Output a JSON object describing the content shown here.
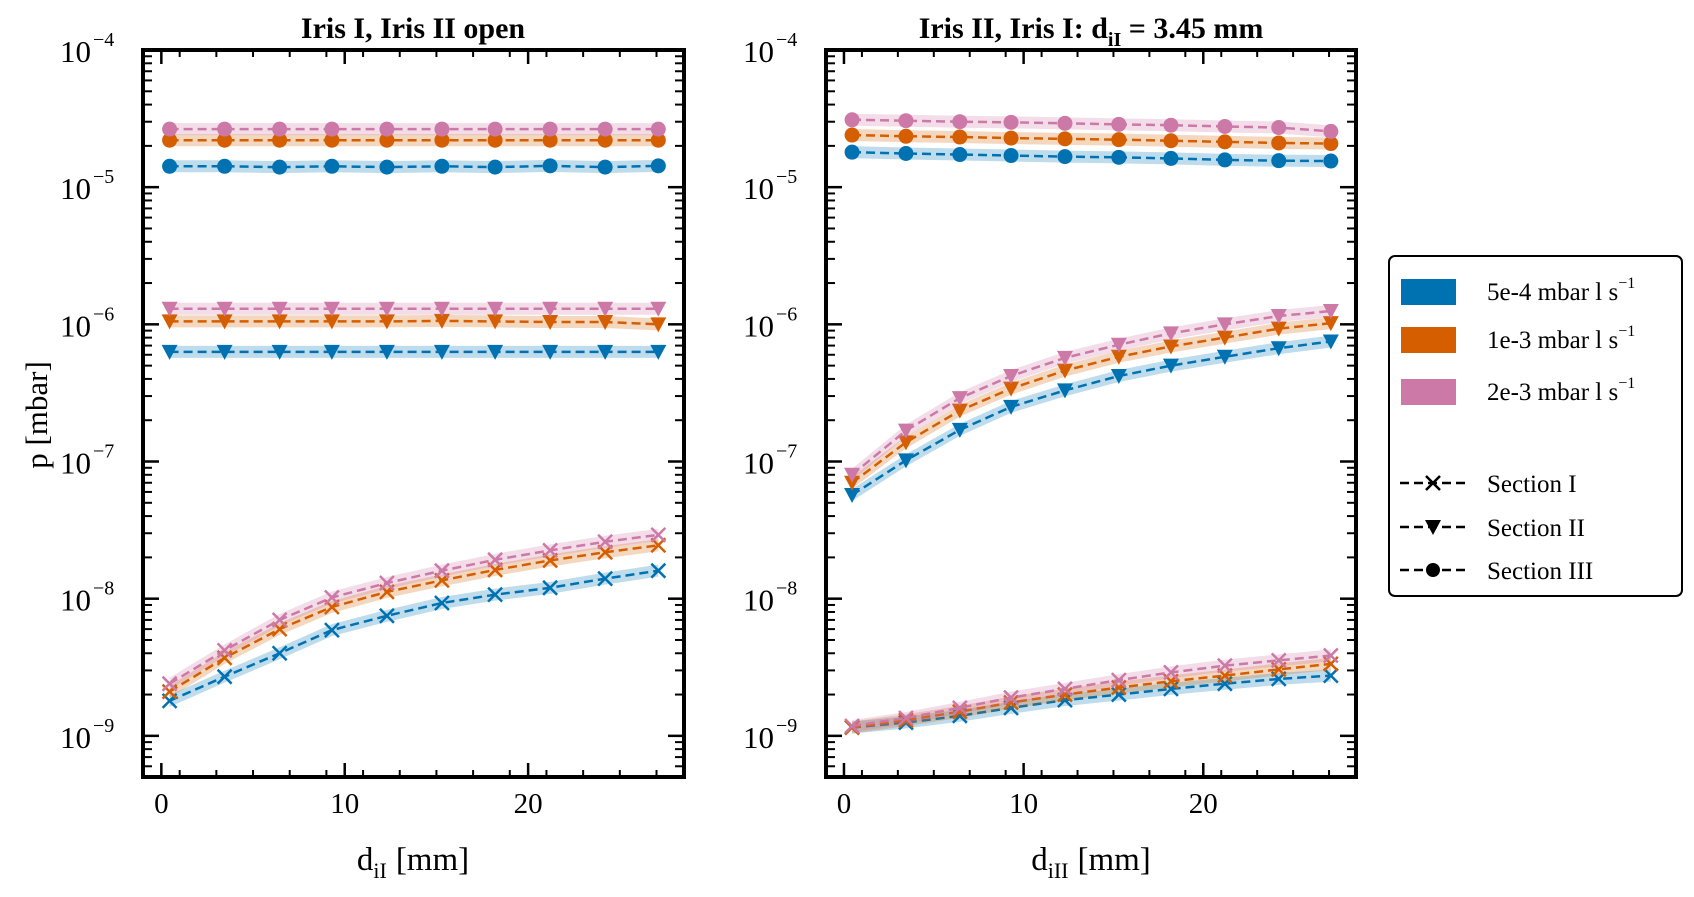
{
  "figure": {
    "ylabel": "p [mbar]",
    "legend": {
      "rates": [
        {
          "label": "5e-4 mbar l s",
          "sup": "−1",
          "color": "#0072B2"
        },
        {
          "label": "1e-3 mbar l s",
          "sup": "−1",
          "color": "#D55E00"
        },
        {
          "label": "2e-3 mbar l s",
          "sup": "−1",
          "color": "#CC79A7"
        }
      ],
      "sections": [
        {
          "label": "Section I",
          "marker": "x"
        },
        {
          "label": "Section II",
          "marker": "v"
        },
        {
          "label": "Section III",
          "marker": "o"
        }
      ]
    }
  },
  "chart_data": [
    {
      "type": "line",
      "title": "Iris I, Iris II open",
      "xlabel": "d",
      "xlabel_sub": "iI",
      "xlabel_unit": "[mm]",
      "ylabel": "p [mbar]",
      "yscale": "log",
      "xlim": [
        -1,
        28.5
      ],
      "ylim_exp": [
        -9.3,
        -4
      ],
      "xticks": [
        0,
        10,
        20
      ],
      "yticks": [
        {
          "exp": -9,
          "label": "−9"
        },
        {
          "exp": -8,
          "label": "−8"
        },
        {
          "exp": -7,
          "label": "−7"
        },
        {
          "exp": -6,
          "label": "−6"
        },
        {
          "exp": -5,
          "label": "−5"
        },
        {
          "exp": -4,
          "label": "−4"
        }
      ],
      "x": [
        0.45,
        3.45,
        6.45,
        9.3,
        12.3,
        15.3,
        18.2,
        21.2,
        24.2,
        27.1
      ],
      "series": [
        {
          "name": "5e-4 mbar l s⁻¹, Section III",
          "color": "#0072B2",
          "marker": "o",
          "values": [
            1.42e-05,
            1.42e-05,
            1.4e-05,
            1.42e-05,
            1.4e-05,
            1.42e-05,
            1.4e-05,
            1.43e-05,
            1.4e-05,
            1.43e-05
          ]
        },
        {
          "name": "1e-3 mbar l s⁻¹, Section III",
          "color": "#D55E00",
          "marker": "o",
          "values": [
            2.2e-05,
            2.2e-05,
            2.2e-05,
            2.2e-05,
            2.2e-05,
            2.2e-05,
            2.2e-05,
            2.2e-05,
            2.2e-05,
            2.2e-05
          ]
        },
        {
          "name": "2e-3 mbar l s⁻¹, Section III",
          "color": "#CC79A7",
          "marker": "o",
          "values": [
            2.65e-05,
            2.65e-05,
            2.65e-05,
            2.65e-05,
            2.65e-05,
            2.65e-05,
            2.65e-05,
            2.65e-05,
            2.65e-05,
            2.65e-05
          ]
        },
        {
          "name": "5e-4 mbar l s⁻¹, Section II",
          "color": "#0072B2",
          "marker": "v",
          "values": [
            6.3e-07,
            6.3e-07,
            6.3e-07,
            6.3e-07,
            6.3e-07,
            6.3e-07,
            6.3e-07,
            6.3e-07,
            6.3e-07,
            6.3e-07
          ]
        },
        {
          "name": "1e-3 mbar l s⁻¹, Section II",
          "color": "#D55E00",
          "marker": "v",
          "values": [
            1.05e-06,
            1.05e-06,
            1.05e-06,
            1.05e-06,
            1.05e-06,
            1.06e-06,
            1.05e-06,
            1.04e-06,
            1.04e-06,
            1e-06
          ]
        },
        {
          "name": "2e-3 mbar l s⁻¹, Section II",
          "color": "#CC79A7",
          "marker": "v",
          "values": [
            1.3e-06,
            1.3e-06,
            1.3e-06,
            1.3e-06,
            1.3e-06,
            1.3e-06,
            1.3e-06,
            1.3e-06,
            1.3e-06,
            1.3e-06
          ]
        },
        {
          "name": "5e-4 mbar l s⁻¹, Section I",
          "color": "#0072B2",
          "marker": "x",
          "values": [
            1.8e-09,
            2.7e-09,
            4e-09,
            5.9e-09,
            7.5e-09,
            9.3e-09,
            1.07e-08,
            1.2e-08,
            1.4e-08,
            1.6e-08
          ]
        },
        {
          "name": "1e-3 mbar l s⁻¹, Section I",
          "color": "#D55E00",
          "marker": "x",
          "values": [
            2.1e-09,
            3.7e-09,
            6e-09,
            8.7e-09,
            1.12e-08,
            1.36e-08,
            1.62e-08,
            1.9e-08,
            2.18e-08,
            2.45e-08
          ]
        },
        {
          "name": "2e-3 mbar l s⁻¹, Section I",
          "color": "#CC79A7",
          "marker": "x",
          "values": [
            2.4e-09,
            4.2e-09,
            7e-09,
            1.02e-08,
            1.3e-08,
            1.6e-08,
            1.92e-08,
            2.25e-08,
            2.6e-08,
            2.92e-08
          ]
        }
      ]
    },
    {
      "type": "line",
      "title": "Iris II, Iris I: d",
      "title_sub": "iI",
      "title_rest": " = 3.45 mm",
      "xlabel": "d",
      "xlabel_sub": "iII",
      "xlabel_unit": "[mm]",
      "yscale": "log",
      "xlim": [
        -1,
        28.5
      ],
      "ylim_exp": [
        -9.3,
        -4
      ],
      "xticks": [
        0,
        10,
        20
      ],
      "yticks": [
        {
          "exp": -9,
          "label": "−9"
        },
        {
          "exp": -8,
          "label": "−8"
        },
        {
          "exp": -7,
          "label": "−7"
        },
        {
          "exp": -6,
          "label": "−6"
        },
        {
          "exp": -5,
          "label": "−5"
        },
        {
          "exp": -4,
          "label": "−4"
        }
      ],
      "x": [
        0.45,
        3.45,
        6.45,
        9.3,
        12.3,
        15.3,
        18.2,
        21.2,
        24.2,
        27.1
      ],
      "series": [
        {
          "name": "5e-4 mbar l s⁻¹, Section III",
          "color": "#0072B2",
          "marker": "o",
          "values": [
            1.8e-05,
            1.76e-05,
            1.73e-05,
            1.7e-05,
            1.67e-05,
            1.65e-05,
            1.62e-05,
            1.58e-05,
            1.56e-05,
            1.55e-05
          ]
        },
        {
          "name": "1e-3 mbar l s⁻¹, Section III",
          "color": "#D55E00",
          "marker": "o",
          "values": [
            2.4e-05,
            2.35e-05,
            2.32e-05,
            2.28e-05,
            2.25e-05,
            2.22e-05,
            2.18e-05,
            2.14e-05,
            2.1e-05,
            2.08e-05
          ]
        },
        {
          "name": "2e-3 mbar l s⁻¹, Section III",
          "color": "#CC79A7",
          "marker": "o",
          "values": [
            3.1e-05,
            3.05e-05,
            3e-05,
            2.97e-05,
            2.92e-05,
            2.87e-05,
            2.83e-05,
            2.77e-05,
            2.72e-05,
            2.55e-05
          ]
        },
        {
          "name": "5e-4 mbar l s⁻¹, Section II",
          "color": "#0072B2",
          "marker": "v",
          "values": [
            5.7e-08,
            1.02e-07,
            1.7e-07,
            2.5e-07,
            3.3e-07,
            4.2e-07,
            5e-07,
            5.8e-07,
            6.7e-07,
            7.5e-07
          ]
        },
        {
          "name": "1e-3 mbar l s⁻¹, Section II",
          "color": "#D55E00",
          "marker": "v",
          "values": [
            7e-08,
            1.38e-07,
            2.35e-07,
            3.4e-07,
            4.6e-07,
            5.8e-07,
            6.9e-07,
            8e-07,
            9.3e-07,
            1.02e-06
          ]
        },
        {
          "name": "2e-3 mbar l s⁻¹, Section II",
          "color": "#CC79A7",
          "marker": "v",
          "values": [
            8e-08,
            1.68e-07,
            2.9e-07,
            4.2e-07,
            5.7e-07,
            7.1e-07,
            8.6e-07,
            1e-06,
            1.15e-06,
            1.25e-06
          ]
        },
        {
          "name": "5e-4 mbar l s⁻¹, Section I",
          "color": "#0072B2",
          "marker": "x",
          "values": [
            1.15e-09,
            1.25e-09,
            1.4e-09,
            1.6e-09,
            1.82e-09,
            2e-09,
            2.2e-09,
            2.4e-09,
            2.6e-09,
            2.75e-09
          ]
        },
        {
          "name": "1e-3 mbar l s⁻¹, Section I",
          "color": "#D55E00",
          "marker": "x",
          "values": [
            1.15e-09,
            1.3e-09,
            1.5e-09,
            1.75e-09,
            2e-09,
            2.25e-09,
            2.5e-09,
            2.75e-09,
            3.05e-09,
            3.35e-09
          ]
        },
        {
          "name": "2e-3 mbar l s⁻¹, Section I",
          "color": "#CC79A7",
          "marker": "x",
          "values": [
            1.18e-09,
            1.35e-09,
            1.6e-09,
            1.9e-09,
            2.2e-09,
            2.55e-09,
            2.9e-09,
            3.25e-09,
            3.55e-09,
            3.85e-09
          ]
        }
      ]
    }
  ]
}
